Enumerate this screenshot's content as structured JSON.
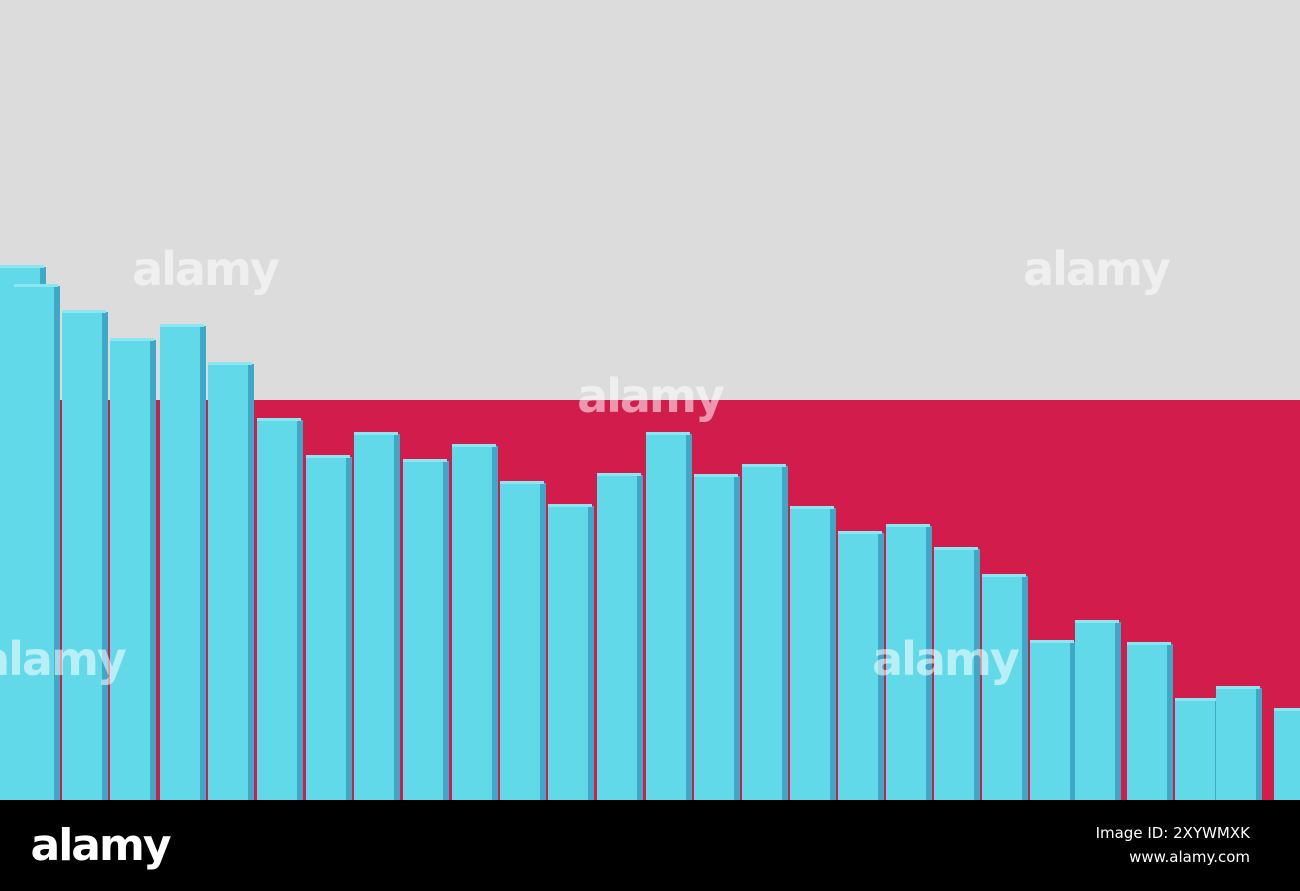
{
  "watermark": "alamy",
  "footer": {
    "logo": "alamy",
    "image_id": "Image ID: 2XYWMXK",
    "url": "www.alamy.com"
  }
}
